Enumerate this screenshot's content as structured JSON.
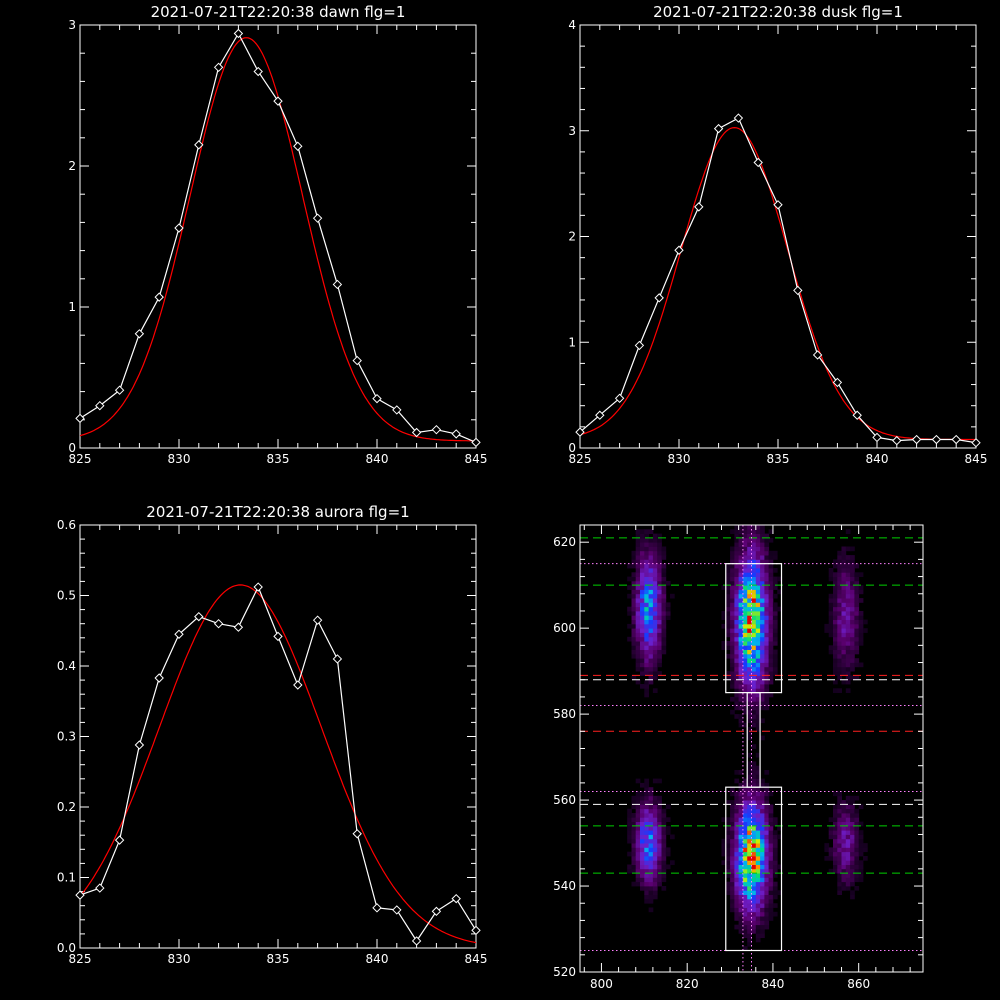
{
  "chart_data": [
    {
      "type": "line",
      "title": "2021-07-21T22:20:38 dawn flg=1",
      "xlim": [
        825,
        845
      ],
      "ylim": [
        0,
        3
      ],
      "xticks": [
        "825",
        "830",
        "835",
        "840",
        "845"
      ],
      "yticks": [
        "0",
        "1",
        "2",
        "3"
      ],
      "series": [
        {
          "color": "#ffffff",
          "marker": "diamond",
          "x": [
            825,
            826,
            827,
            828,
            829,
            830,
            831,
            832,
            833,
            834,
            835,
            836,
            837,
            838,
            839,
            840,
            841,
            842,
            843,
            844,
            845
          ],
          "y": [
            0.21,
            0.3,
            0.41,
            0.81,
            1.07,
            1.56,
            2.15,
            2.7,
            2.94,
            2.67,
            2.46,
            2.14,
            1.63,
            1.16,
            0.62,
            0.35,
            0.27,
            0.11,
            0.13,
            0.1,
            0.04
          ]
        },
        {
          "color": "#ff0000",
          "fit": "gaussian",
          "amp": 2.86,
          "mu": 833.4,
          "sigma": 2.85,
          "base": 0.05
        }
      ]
    },
    {
      "type": "line",
      "title": "2021-07-21T22:20:38 dusk flg=1",
      "xlim": [
        825,
        845
      ],
      "ylim": [
        0,
        4
      ],
      "xticks": [
        "825",
        "830",
        "835",
        "840",
        "845"
      ],
      "yticks": [
        "0",
        "1",
        "2",
        "3",
        "4"
      ],
      "series": [
        {
          "color": "#ffffff",
          "marker": "diamond",
          "x": [
            825,
            826,
            827,
            828,
            829,
            830,
            831,
            832,
            833,
            834,
            835,
            836,
            837,
            838,
            839,
            840,
            841,
            842,
            843,
            844,
            845
          ],
          "y": [
            0.15,
            0.31,
            0.47,
            0.97,
            1.42,
            1.87,
            2.28,
            3.02,
            3.12,
            2.7,
            2.3,
            1.49,
            0.88,
            0.62,
            0.31,
            0.1,
            0.07,
            0.08,
            0.08,
            0.08,
            0.05
          ]
        },
        {
          "color": "#ff0000",
          "fit": "gaussian",
          "amp": 2.95,
          "mu": 832.8,
          "sigma": 2.7,
          "base": 0.08
        }
      ]
    },
    {
      "type": "line",
      "title": "2021-07-21T22:20:38 aurora flg=1",
      "xlim": [
        825,
        845
      ],
      "ylim": [
        0,
        0.6
      ],
      "xticks": [
        "825",
        "830",
        "835",
        "840",
        "845"
      ],
      "yticks": [
        "0.0",
        "0.1",
        "0.2",
        "0.3",
        "0.4",
        "0.5",
        "0.6"
      ],
      "series": [
        {
          "color": "#ffffff",
          "marker": "diamond",
          "x": [
            825,
            826,
            827,
            828,
            829,
            830,
            831,
            832,
            833,
            834,
            835,
            836,
            837,
            838,
            839,
            840,
            841,
            842,
            843,
            844,
            845
          ],
          "y": [
            0.075,
            0.085,
            0.153,
            0.288,
            0.383,
            0.445,
            0.47,
            0.46,
            0.455,
            0.512,
            0.442,
            0.373,
            0.465,
            0.41,
            0.162,
            0.057,
            0.054,
            0.01,
            0.052,
            0.07,
            0.025
          ]
        },
        {
          "color": "#ff0000",
          "fit": "gaussian",
          "amp": 0.515,
          "mu": 833.1,
          "sigma": 4.1,
          "base": 0.0
        }
      ]
    },
    {
      "type": "heatmap",
      "title": "",
      "xlim": [
        795,
        875
      ],
      "ylim": [
        520,
        624
      ],
      "xticks": [
        "800",
        "820",
        "840",
        "860"
      ],
      "yticks": [
        "520",
        "540",
        "560",
        "580",
        "600",
        "620"
      ],
      "blobs": [
        {
          "x": 811,
          "y": 605,
          "sx": 2.0,
          "sy": 8,
          "amp": 0.55
        },
        {
          "x": 835,
          "y": 602,
          "sx": 2.4,
          "sy": 10,
          "amp": 0.9
        },
        {
          "x": 857,
          "y": 603,
          "sx": 2.0,
          "sy": 8,
          "amp": 0.25
        },
        {
          "x": 811,
          "y": 550,
          "sx": 2.0,
          "sy": 6,
          "amp": 0.5
        },
        {
          "x": 835,
          "y": 547,
          "sx": 2.4,
          "sy": 8,
          "amp": 0.95
        },
        {
          "x": 857,
          "y": 550,
          "sx": 2.0,
          "sy": 6,
          "amp": 0.25
        }
      ],
      "boxes": [
        {
          "x0": 829,
          "x1": 842,
          "y0": 585,
          "y1": 615
        },
        {
          "x0": 834,
          "x1": 837,
          "y0": 563,
          "y1": 585
        },
        {
          "x0": 829,
          "x1": 842,
          "y0": 525,
          "y1": 563
        }
      ],
      "hlines_green_dashed": [
        621,
        610,
        554,
        543
      ],
      "hlines_white_dashed": [
        588,
        559
      ],
      "hlines_red_dashed": [
        589,
        576
      ],
      "hlines_pink_dotted": [
        615,
        582,
        562,
        525
      ],
      "vlines_pink_dotted": [
        833,
        835
      ]
    }
  ]
}
